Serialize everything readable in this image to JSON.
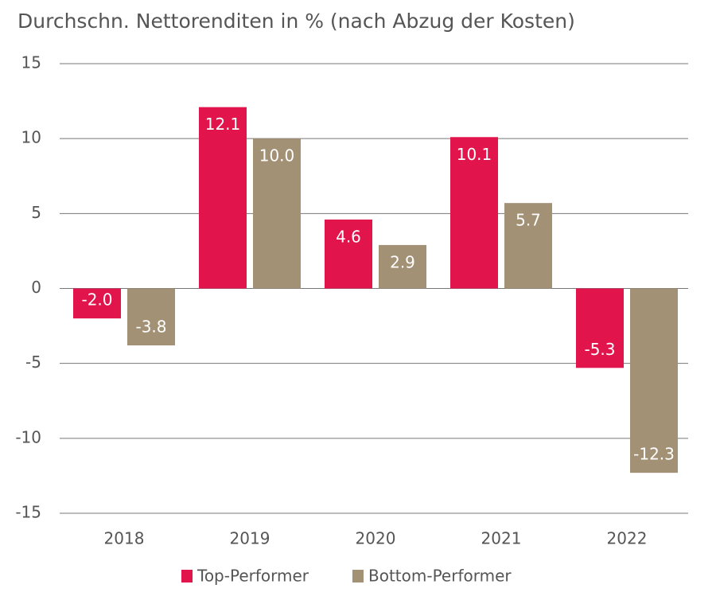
{
  "chart_data": {
    "type": "bar",
    "title": "Durchschn. Nettorenditen in % (nach Abzug der Kosten)",
    "categories": [
      "2018",
      "2019",
      "2020",
      "2021",
      "2022"
    ],
    "series": [
      {
        "name": "Top-Performer",
        "color": "#e2144c",
        "values": [
          -2.0,
          12.1,
          4.6,
          10.1,
          -5.3
        ],
        "value_labels": [
          "-2.0",
          "12.1",
          "4.6",
          "10.1",
          "-5.3"
        ]
      },
      {
        "name": "Bottom-Performer",
        "color": "#a39175",
        "values": [
          -3.8,
          10.0,
          2.9,
          5.7,
          -12.3
        ],
        "value_labels": [
          "-3.8",
          "10.0",
          "2.9",
          "5.7",
          "-12.3"
        ]
      }
    ],
    "ylim": [
      -15,
      15
    ],
    "yticks": [
      -15,
      -10,
      -5,
      0,
      5,
      10,
      15
    ],
    "grid": true,
    "legend": "bottom"
  }
}
